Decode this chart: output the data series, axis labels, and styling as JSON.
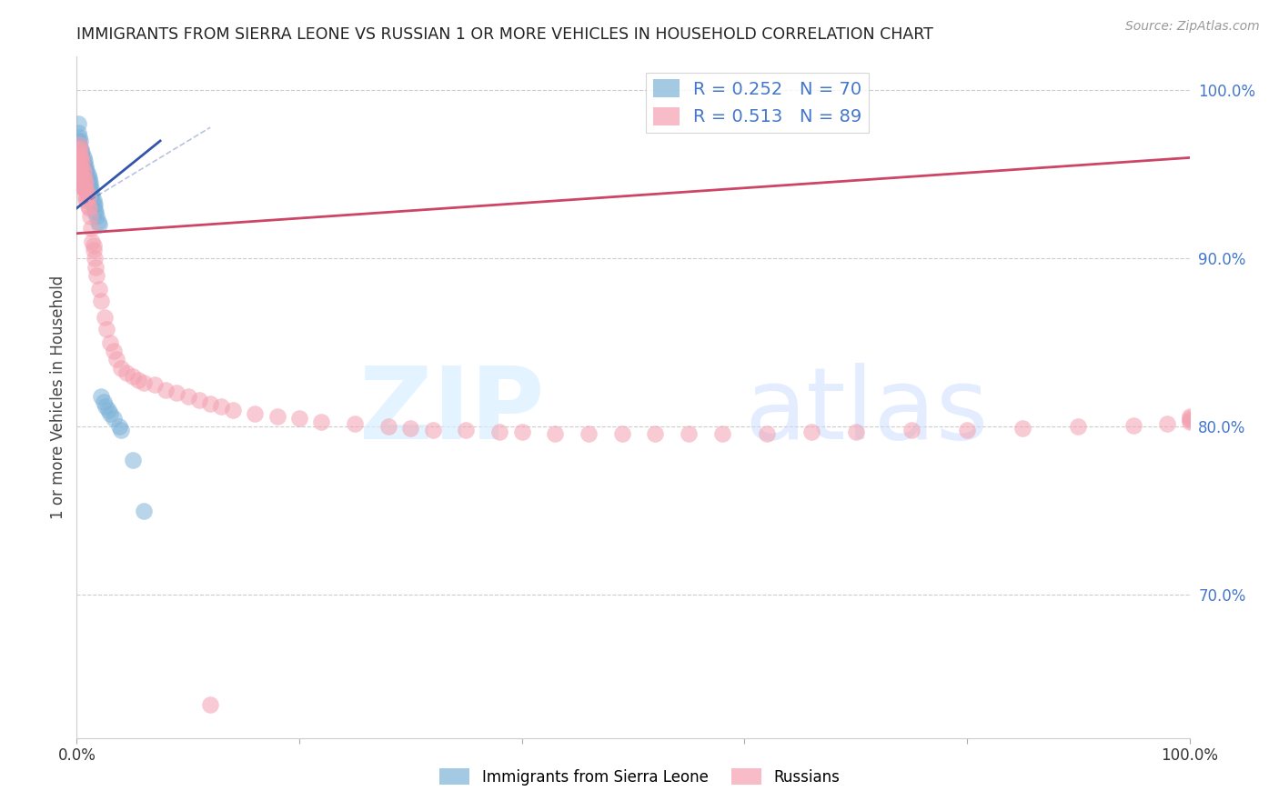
{
  "title": "IMMIGRANTS FROM SIERRA LEONE VS RUSSIAN 1 OR MORE VEHICLES IN HOUSEHOLD CORRELATION CHART",
  "source": "Source: ZipAtlas.com",
  "ylabel": "1 or more Vehicles in Household",
  "legend_label1": "Immigrants from Sierra Leone",
  "legend_label2": "Russians",
  "R1": 0.252,
  "N1": 70,
  "R2": 0.513,
  "N2": 89,
  "color_blue": "#7EB3D8",
  "color_pink": "#F4A0B0",
  "line_blue": "#3355AA",
  "line_pink": "#CC4466",
  "right_yticks": [
    0.7,
    0.8,
    0.9,
    1.0
  ],
  "right_ytick_labels": [
    "70.0%",
    "80.0%",
    "90.0%",
    "100.0%"
  ],
  "xlim": [
    0.0,
    1.0
  ],
  "ylim": [
    0.615,
    1.02
  ],
  "blue_x": [
    0.001,
    0.001,
    0.001,
    0.002,
    0.002,
    0.002,
    0.003,
    0.003,
    0.003,
    0.003,
    0.004,
    0.004,
    0.004,
    0.004,
    0.005,
    0.005,
    0.005,
    0.005,
    0.005,
    0.005,
    0.006,
    0.006,
    0.006,
    0.006,
    0.006,
    0.007,
    0.007,
    0.007,
    0.007,
    0.007,
    0.007,
    0.008,
    0.008,
    0.008,
    0.008,
    0.009,
    0.009,
    0.009,
    0.009,
    0.01,
    0.01,
    0.01,
    0.01,
    0.011,
    0.011,
    0.011,
    0.012,
    0.012,
    0.013,
    0.013,
    0.014,
    0.014,
    0.015,
    0.015,
    0.016,
    0.016,
    0.017,
    0.018,
    0.019,
    0.02,
    0.022,
    0.024,
    0.026,
    0.028,
    0.03,
    0.033,
    0.038,
    0.04,
    0.05,
    0.06
  ],
  "blue_y": [
    0.98,
    0.975,
    0.97,
    0.972,
    0.968,
    0.965,
    0.97,
    0.965,
    0.96,
    0.958,
    0.965,
    0.962,
    0.958,
    0.955,
    0.963,
    0.96,
    0.957,
    0.954,
    0.95,
    0.947,
    0.96,
    0.957,
    0.954,
    0.95,
    0.947,
    0.958,
    0.955,
    0.952,
    0.948,
    0.945,
    0.942,
    0.955,
    0.952,
    0.948,
    0.945,
    0.952,
    0.948,
    0.945,
    0.942,
    0.95,
    0.947,
    0.944,
    0.94,
    0.948,
    0.945,
    0.942,
    0.945,
    0.942,
    0.942,
    0.938,
    0.938,
    0.935,
    0.935,
    0.932,
    0.932,
    0.929,
    0.928,
    0.925,
    0.922,
    0.92,
    0.818,
    0.815,
    0.812,
    0.81,
    0.808,
    0.805,
    0.8,
    0.798,
    0.78,
    0.75
  ],
  "pink_x": [
    0.001,
    0.001,
    0.002,
    0.002,
    0.002,
    0.003,
    0.003,
    0.003,
    0.003,
    0.004,
    0.004,
    0.004,
    0.005,
    0.005,
    0.005,
    0.005,
    0.006,
    0.006,
    0.006,
    0.007,
    0.007,
    0.007,
    0.008,
    0.008,
    0.008,
    0.009,
    0.009,
    0.01,
    0.01,
    0.011,
    0.012,
    0.013,
    0.014,
    0.015,
    0.015,
    0.016,
    0.017,
    0.018,
    0.02,
    0.022,
    0.025,
    0.027,
    0.03,
    0.033,
    0.036,
    0.04,
    0.045,
    0.05,
    0.055,
    0.06,
    0.07,
    0.08,
    0.09,
    0.1,
    0.11,
    0.12,
    0.13,
    0.14,
    0.16,
    0.18,
    0.2,
    0.22,
    0.25,
    0.28,
    0.3,
    0.32,
    0.35,
    0.38,
    0.4,
    0.43,
    0.46,
    0.49,
    0.52,
    0.55,
    0.58,
    0.62,
    0.66,
    0.7,
    0.75,
    0.8,
    0.85,
    0.9,
    0.95,
    0.98,
    1.0,
    1.0,
    1.0,
    1.0,
    0.12
  ],
  "pink_y": [
    0.965,
    0.96,
    0.968,
    0.963,
    0.958,
    0.965,
    0.96,
    0.955,
    0.95,
    0.96,
    0.955,
    0.95,
    0.958,
    0.953,
    0.948,
    0.943,
    0.952,
    0.947,
    0.942,
    0.948,
    0.943,
    0.938,
    0.945,
    0.94,
    0.935,
    0.94,
    0.935,
    0.936,
    0.931,
    0.93,
    0.925,
    0.918,
    0.91,
    0.908,
    0.905,
    0.9,
    0.895,
    0.89,
    0.882,
    0.875,
    0.865,
    0.858,
    0.85,
    0.845,
    0.84,
    0.835,
    0.832,
    0.83,
    0.828,
    0.826,
    0.825,
    0.822,
    0.82,
    0.818,
    0.816,
    0.814,
    0.812,
    0.81,
    0.808,
    0.806,
    0.805,
    0.803,
    0.802,
    0.8,
    0.799,
    0.798,
    0.798,
    0.797,
    0.797,
    0.796,
    0.796,
    0.796,
    0.796,
    0.796,
    0.796,
    0.796,
    0.797,
    0.797,
    0.798,
    0.798,
    0.799,
    0.8,
    0.801,
    0.802,
    0.803,
    0.804,
    0.805,
    0.806,
    0.635
  ],
  "blue_trend_x": [
    0.0,
    0.075
  ],
  "blue_trend_y": [
    0.93,
    0.97
  ],
  "pink_trend_x": [
    0.0,
    1.0
  ],
  "pink_trend_y": [
    0.915,
    0.96
  ]
}
